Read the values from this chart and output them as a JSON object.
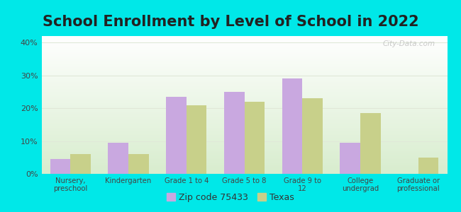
{
  "title": "School Enrollment by Level of School in 2022",
  "categories": [
    "Nursery,\npreschool",
    "Kindergarten",
    "Grade 1 to 4",
    "Grade 5 to 8",
    "Grade 9 to\n12",
    "College\nundergrad",
    "Graduate or\nprofessional"
  ],
  "zip_values": [
    4.5,
    9.5,
    23.5,
    25.0,
    29.0,
    9.5,
    0.0
  ],
  "texas_values": [
    6.0,
    6.0,
    21.0,
    22.0,
    23.0,
    18.5,
    5.0
  ],
  "zip_color": "#c9a8e0",
  "texas_color": "#c8d08a",
  "background_outer": "#00e8e8",
  "background_inner_top": "#ffffff",
  "background_inner_bottom": "#d8edce",
  "ylim": [
    0,
    42
  ],
  "yticks": [
    0,
    10,
    20,
    30,
    40
  ],
  "yticklabels": [
    "0%",
    "10%",
    "20%",
    "30%",
    "40%"
  ],
  "legend_zip_label": "Zip code 75433",
  "legend_texas_label": "Texas",
  "title_fontsize": 15,
  "watermark_text": "City-Data.com",
  "tick_color": "#444444",
  "grid_color": "#e0e8d8"
}
